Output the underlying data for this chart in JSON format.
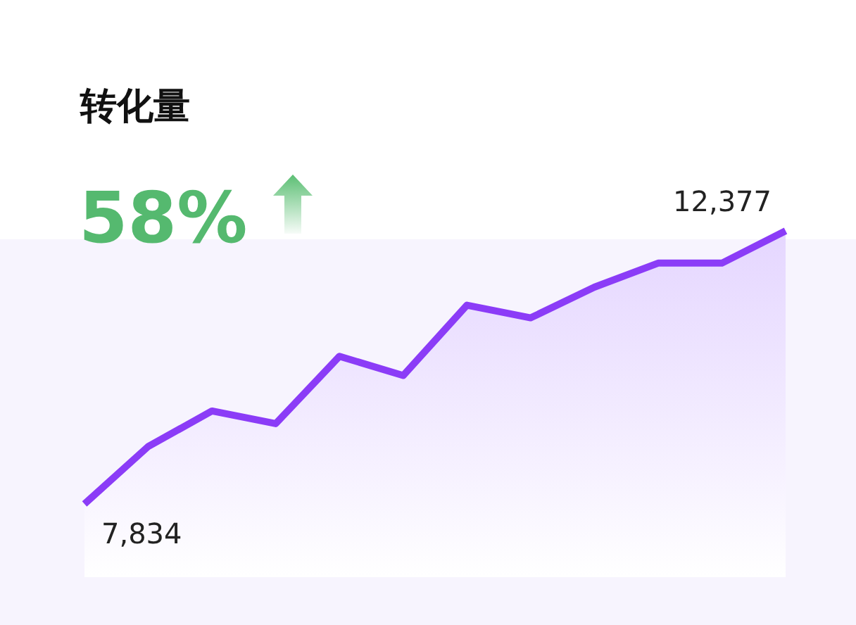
{
  "chart_data": {
    "type": "area",
    "title": "转化量",
    "annotations": [
      "58%"
    ],
    "categories": [
      null,
      null,
      null,
      null,
      null,
      null,
      null,
      null,
      null,
      null,
      null,
      null
    ],
    "series": [
      {
        "color": "#8b3cf7",
        "values": [
          7834,
          8790,
          9380,
          9170,
          10290,
          9970,
          11140,
          10930,
          11440,
          11840,
          11840,
          12377
        ],
        "value_labels": [
          "7,834",
          null,
          null,
          null,
          null,
          null,
          null,
          null,
          null,
          null,
          null,
          "12,377"
        ]
      }
    ]
  }
}
